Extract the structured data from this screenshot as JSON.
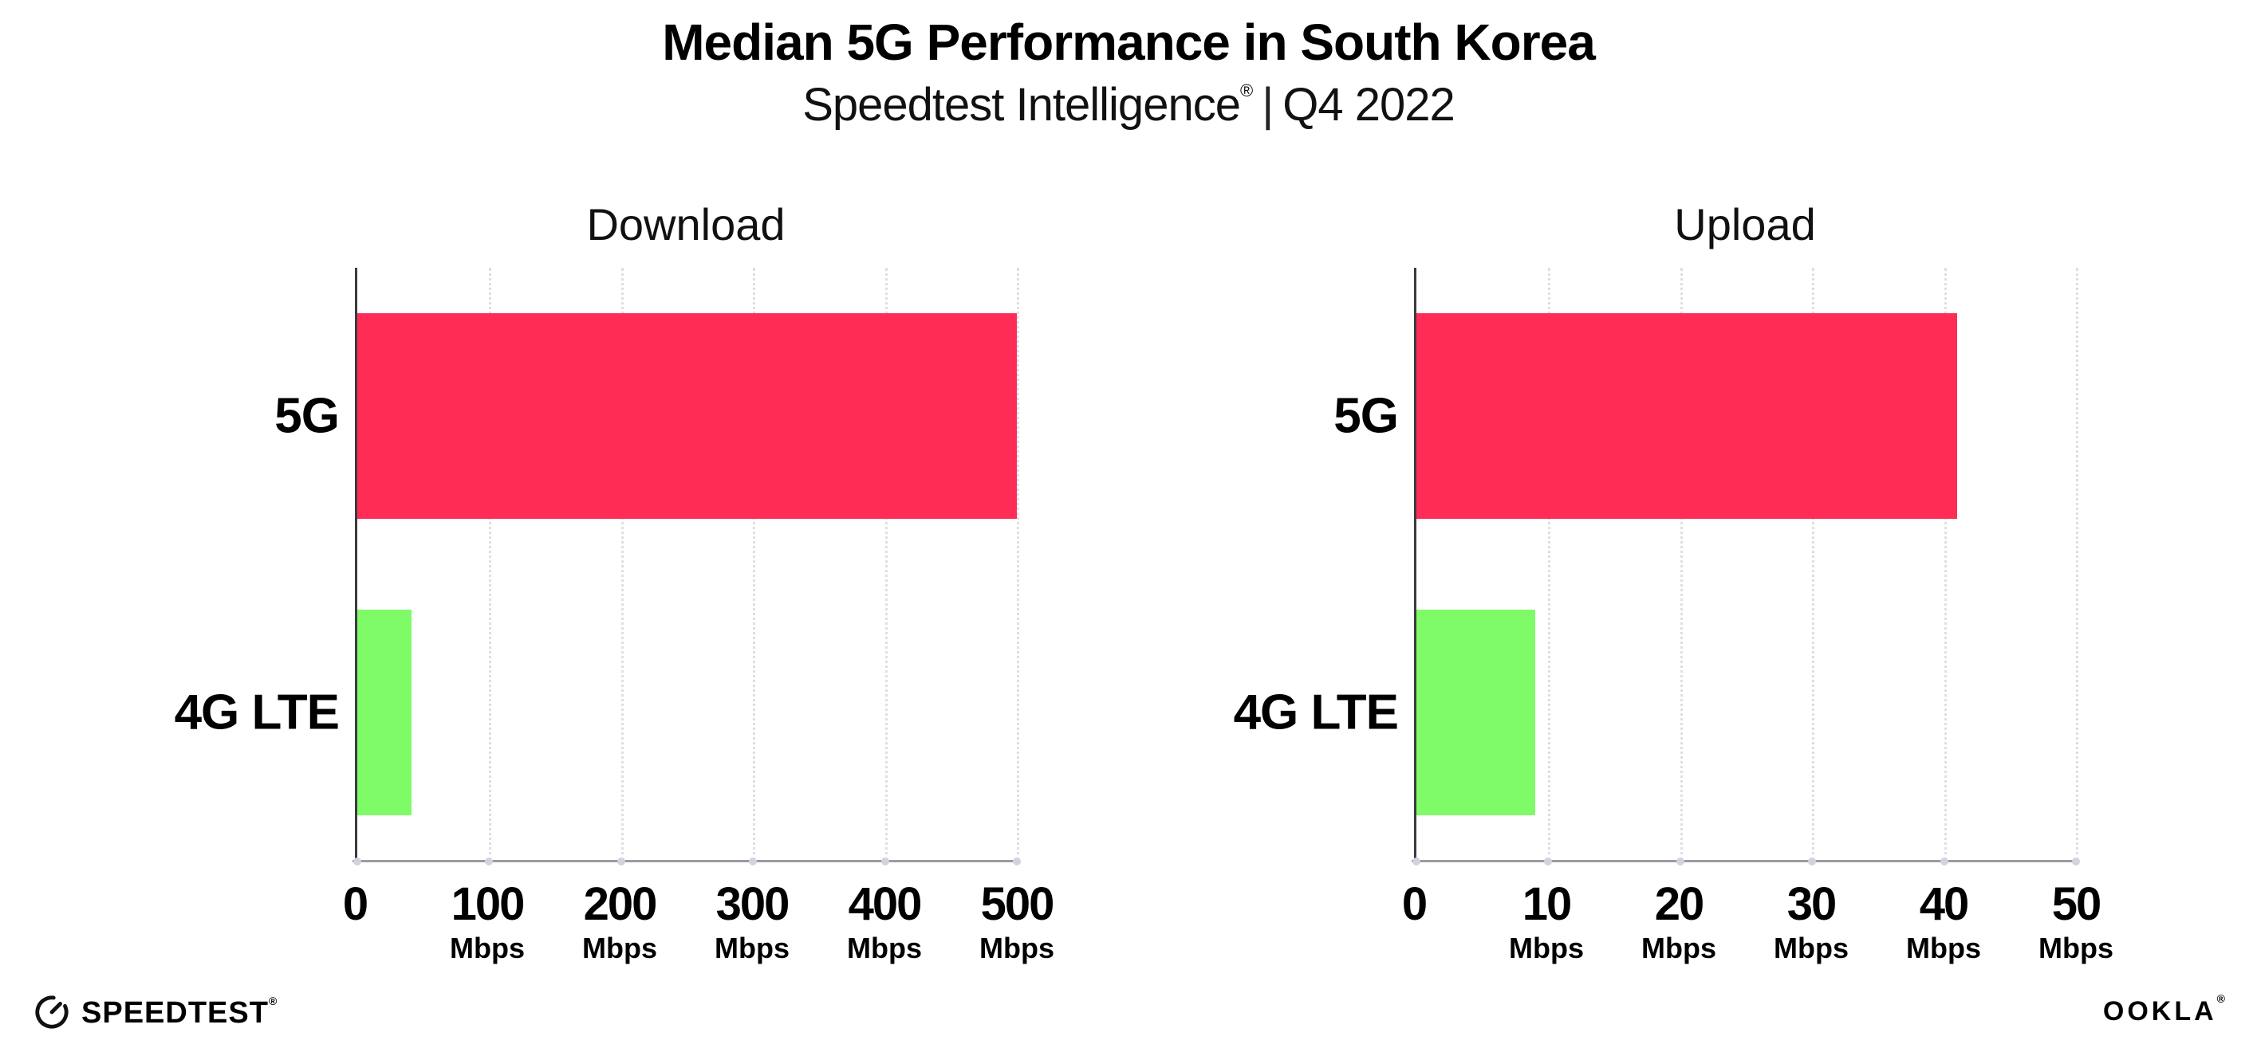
{
  "header": {
    "title": "Median 5G Performance in South Korea",
    "subtitle_brand": "Speedtest Intelligence",
    "subtitle_reg": "®",
    "subtitle_divider": "|",
    "subtitle_period": "Q4 2022"
  },
  "colors": {
    "bar_5g": "#FF2D56",
    "bar_4g_lte": "#7FFB67",
    "gridline": "#DEDEE8",
    "y_axis": "#3A3A40",
    "x_axis": "#9B9BA3",
    "tick_dot": "#D3D3E0",
    "text": "#000000"
  },
  "chart_data": [
    {
      "type": "bar",
      "orientation": "horizontal",
      "title": "Download",
      "categories": [
        "5G",
        "4G LTE"
      ],
      "values": [
        500,
        41
      ],
      "unit": "Mbps",
      "xlim": [
        0,
        500
      ],
      "ticks": [
        0,
        100,
        200,
        300,
        400,
        500
      ],
      "bar_colors": [
        "#FF2D56",
        "#7FFB67"
      ],
      "grid": "dotted-vertical",
      "legend": "none"
    },
    {
      "type": "bar",
      "orientation": "horizontal",
      "title": "Upload",
      "categories": [
        "5G",
        "4G LTE"
      ],
      "values": [
        41,
        9
      ],
      "unit": "Mbps",
      "xlim": [
        0,
        50
      ],
      "ticks": [
        0,
        10,
        20,
        30,
        40,
        50
      ],
      "bar_colors": [
        "#FF2D56",
        "#7FFB67"
      ],
      "grid": "dotted-vertical",
      "legend": "none"
    }
  ],
  "footer": {
    "speedtest_label": "SPEEDTEST",
    "speedtest_reg": "®",
    "ookla_label": "OOKLA",
    "ookla_reg": "®"
  }
}
